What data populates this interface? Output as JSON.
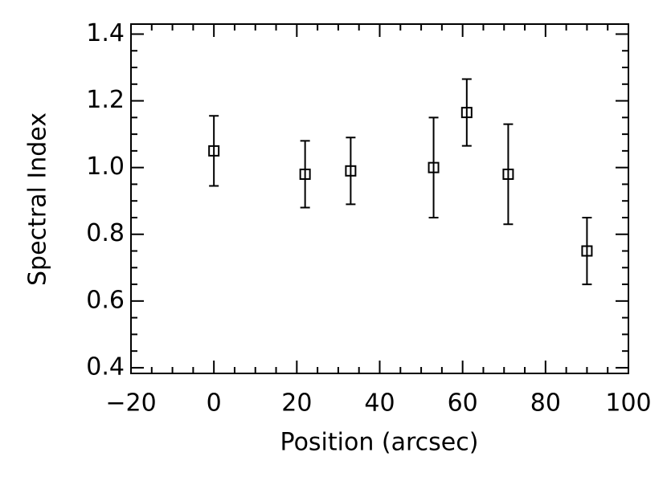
{
  "chart_data": {
    "type": "scatter",
    "x_label": "Position (arcsec)",
    "y_label": "Spectral Index",
    "x": [
      0,
      22,
      33,
      53,
      61,
      71,
      90
    ],
    "values": [
      1.05,
      0.98,
      0.99,
      1.0,
      1.165,
      0.98,
      0.75
    ],
    "errors": [
      0.105,
      0.1,
      0.1,
      0.15,
      0.1,
      0.15,
      0.1
    ],
    "color": "#000000",
    "xlim": [
      -20,
      100
    ],
    "xticks": [
      {
        "value": -20,
        "label": "−20"
      },
      0,
      20,
      40,
      60,
      80,
      100
    ],
    "ylim": [
      0.383,
      1.43
    ],
    "yticks": [
      0.4,
      0.6,
      0.8,
      {
        "value": 1.0,
        "label": "1.0"
      },
      1.2,
      1.4
    ]
  }
}
